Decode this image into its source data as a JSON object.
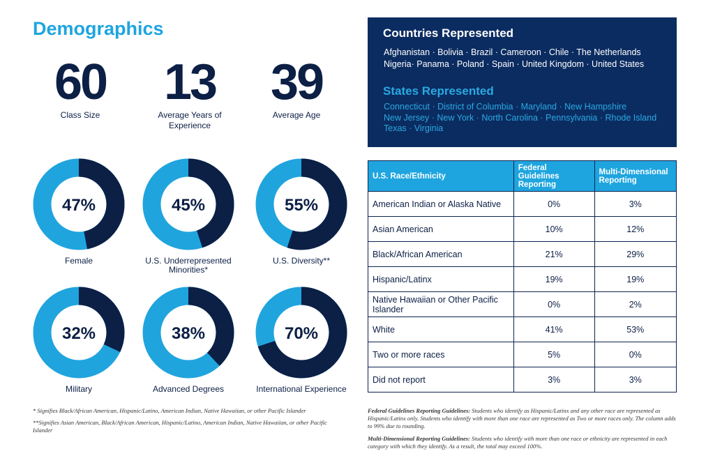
{
  "title": "Demographics",
  "stats": [
    {
      "value": "60",
      "label": "Class Size"
    },
    {
      "value": "13",
      "label": "Average Years of Experience"
    },
    {
      "value": "39",
      "label": "Average Age"
    }
  ],
  "donuts": {
    "values": [
      47,
      45,
      55,
      32,
      38,
      70
    ],
    "value_labels": [
      "47%",
      "45%",
      "55%",
      "32%",
      "38%",
      "70%"
    ],
    "labels": [
      "Female",
      "U.S. Underrepresented Minorities*",
      "U.S. Diversity**",
      "Military",
      "Advanced Degrees",
      "International Experience"
    ],
    "colors": [
      "#0c1f45",
      "#20a4de"
    ]
  },
  "countries": {
    "title": "Countries Represented",
    "lines": [
      "Afghanistan · Bolivia · Brazil · Cameroon · Chile · The Netherlands",
      "Nigeria· Panama · Poland · Spain · United Kingdom · United States"
    ]
  },
  "states": {
    "title": "States Represented",
    "lines": [
      "Connecticut · District of Columbia · Maryland · New Hampshire",
      "New Jersey · New York · North Carolina · Pennsylvania · Rhode Island",
      "Texas · Virginia"
    ]
  },
  "table": {
    "header": [
      "U.S. Race/Ethnicity",
      "Federal Guidelines Reporting",
      "Multi-Dimensional Reporting"
    ],
    "rows": [
      [
        "American Indian or Alaska Native",
        "0%",
        "3%"
      ],
      [
        "Asian American",
        "10%",
        "12%"
      ],
      [
        "Black/African American",
        "21%",
        "29%"
      ],
      [
        "Hispanic/Latinx",
        "19%",
        "19%"
      ],
      [
        "Native Hawaiian or Other Pacific Islander",
        "0%",
        "2%"
      ],
      [
        "White",
        "41%",
        "53%"
      ],
      [
        "Two or more races",
        "5%",
        "0%"
      ],
      [
        "Did not report",
        "3%",
        "3%"
      ]
    ]
  },
  "footnotes": [
    "* Signifies Black/African American, Hispanic/Latino, American Indian, Native Hawaiian, or other Pacific Islander",
    "**Signifies Asian American, Black/African American, Hispanic/Latino, American Indian, Native Hawaiian, or other Pacific Islander"
  ],
  "guidelines": [
    {
      "lead": "Federal Guidelines Reporting Guidelines:",
      "text": "Students who identify as Hispanic/Latinx and any other race are represented as Hispanic/Latinx only. Students who identify with more than one race are represented as Two or more races only. The column adds to 99% due to rounding."
    },
    {
      "lead": "Multi-Dimensional Reporting Guidelines:",
      "text": "Students who identify with more than one race or ethnicity are represented in each category with which they identify. As a result, the total may exceed 100%."
    }
  ]
}
